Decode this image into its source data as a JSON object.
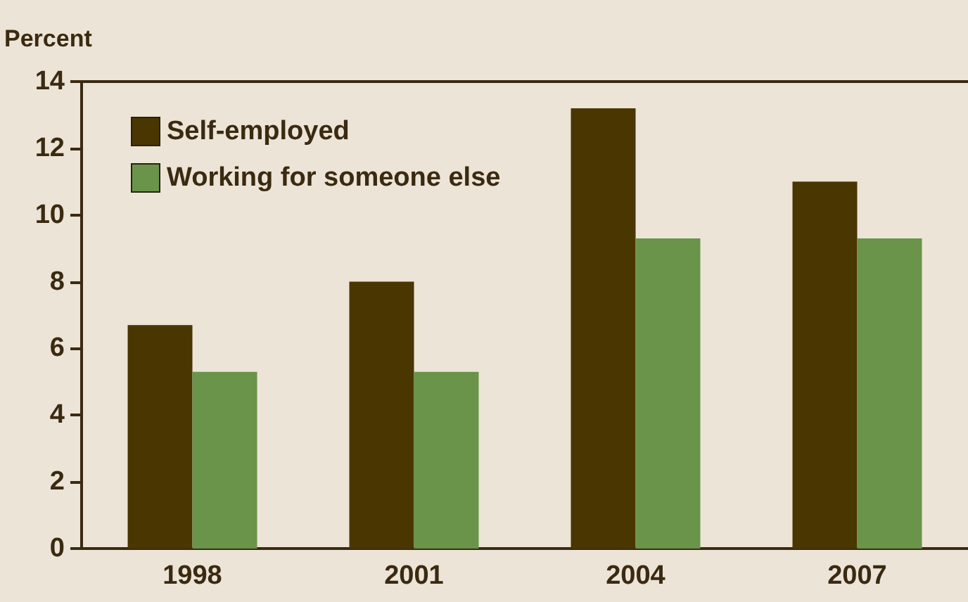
{
  "chart_data": {
    "type": "bar",
    "ylabel": "Percent",
    "categories": [
      "1998",
      "2001",
      "2004",
      "2007"
    ],
    "series": [
      {
        "name": "Self-employed",
        "color": "#4a3600",
        "values": [
          6.7,
          8.0,
          13.2,
          11.0
        ]
      },
      {
        "name": "Working for someone else",
        "color": "#6a9449",
        "values": [
          5.3,
          5.3,
          9.3,
          9.3
        ]
      }
    ],
    "ylim": [
      0,
      14
    ],
    "yticks": [
      0,
      2,
      4,
      6,
      8,
      10,
      12,
      14
    ],
    "grid": false,
    "legend": "top left"
  }
}
